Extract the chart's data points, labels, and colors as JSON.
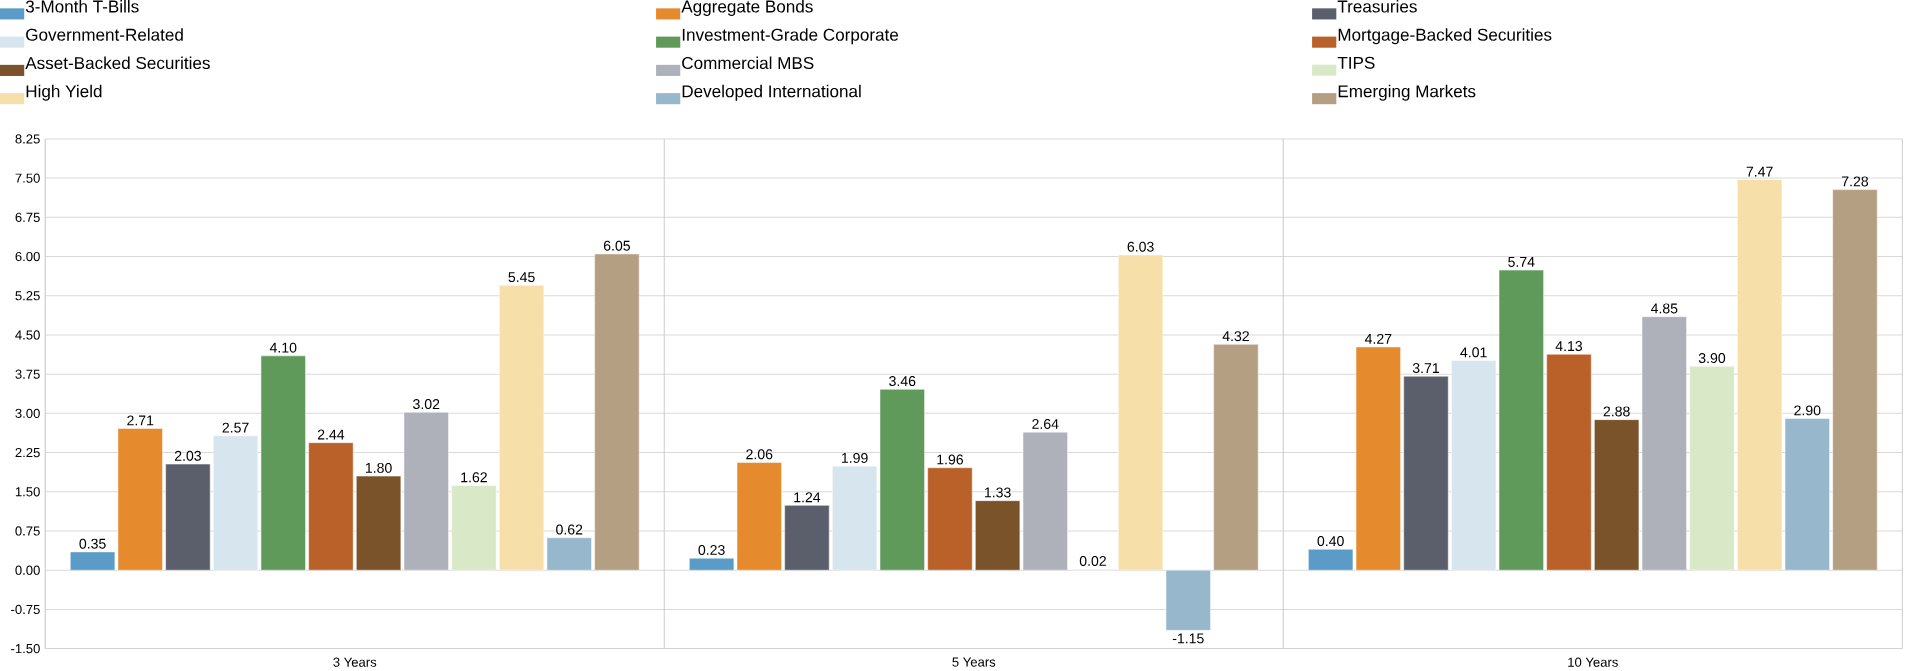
{
  "chart_data": {
    "type": "bar",
    "categories": [
      "3 Years",
      "5 Years",
      "10 Years"
    ],
    "series": [
      {
        "name": "3-Month T-Bills",
        "color": "#5b9bc8",
        "values": [
          0.35,
          0.23,
          0.4
        ],
        "value_labels": [
          "0.35",
          "0.23",
          "0.40"
        ]
      },
      {
        "name": "Aggregate Bonds",
        "color": "#e68a2e",
        "values": [
          2.71,
          2.06,
          4.27
        ],
        "value_labels": [
          "2.71",
          "2.06",
          "4.27"
        ]
      },
      {
        "name": "Treasuries",
        "color": "#5b5f6b",
        "values": [
          2.03,
          1.24,
          3.71
        ],
        "value_labels": [
          "2.03",
          "1.24",
          "3.71"
        ]
      },
      {
        "name": "Government-Related",
        "color": "#d7e6ee",
        "values": [
          2.57,
          1.99,
          4.01
        ],
        "value_labels": [
          "2.57",
          "1.99",
          "4.01"
        ]
      },
      {
        "name": "Investment-Grade Corporate",
        "color": "#5f9a5b",
        "values": [
          4.1,
          3.46,
          5.74
        ],
        "value_labels": [
          "4.10",
          "3.46",
          "5.74"
        ]
      },
      {
        "name": "Mortgage-Backed Securities",
        "color": "#b96128",
        "values": [
          2.44,
          1.96,
          4.13
        ],
        "value_labels": [
          "2.44",
          "1.96",
          "4.13"
        ]
      },
      {
        "name": "Asset-Backed Securities",
        "color": "#7a532a",
        "values": [
          1.8,
          1.33,
          2.88
        ],
        "value_labels": [
          "1.80",
          "1.33",
          "2.88"
        ]
      },
      {
        "name": "Commercial MBS",
        "color": "#aeb1ba",
        "values": [
          3.02,
          2.64,
          4.85
        ],
        "value_labels": [
          "3.02",
          "2.64",
          "4.85"
        ]
      },
      {
        "name": "TIPS",
        "color": "#d9e8c6",
        "values": [
          1.62,
          0.02,
          3.9
        ],
        "value_labels": [
          "1.62",
          "0.02",
          "3.90"
        ]
      },
      {
        "name": "High Yield",
        "color": "#f7dfaa",
        "values": [
          5.45,
          6.03,
          7.47
        ],
        "value_labels": [
          "5.45",
          "6.03",
          "7.47"
        ]
      },
      {
        "name": "Developed International",
        "color": "#97b7cc",
        "values": [
          0.62,
          -1.15,
          2.9
        ],
        "value_labels": [
          "0.62",
          "-1.15",
          "2.90"
        ]
      },
      {
        "name": "Emerging Markets",
        "color": "#b59f82",
        "values": [
          6.05,
          4.32,
          7.28
        ],
        "value_labels": [
          "6.05",
          "4.32",
          "7.28"
        ]
      }
    ],
    "ylim": [
      -1.5,
      8.25
    ],
    "yticks": [
      {
        "value": -1.5,
        "label": "-1.50"
      },
      -0.75,
      {
        "value": 0,
        "label": "0.00"
      },
      0.75,
      {
        "value": 1.5,
        "label": "1.50"
      },
      2.25,
      {
        "value": 3,
        "label": "3.00"
      },
      3.75,
      {
        "value": 4.5,
        "label": "4.50"
      },
      5.25,
      {
        "value": 6,
        "label": "6.00"
      },
      6.75,
      {
        "value": 7.5,
        "label": "7.50"
      },
      8.25
    ],
    "grid": "y",
    "legend": "top"
  }
}
